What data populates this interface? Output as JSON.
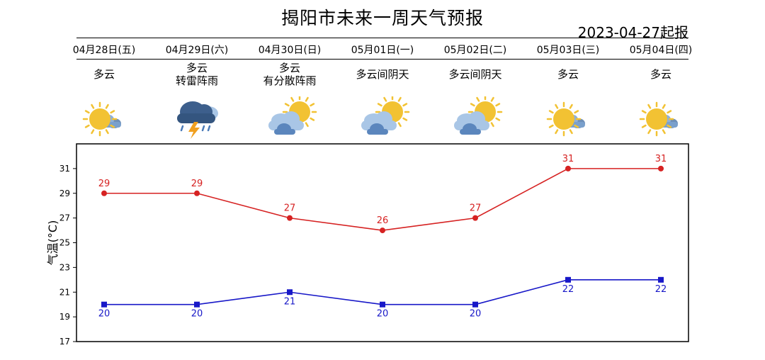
{
  "title": "揭阳市未来一周天气预报",
  "issued": "2023-04-27起报",
  "days": [
    {
      "date": "04月28日(五)",
      "cond": [
        "多云"
      ],
      "icon": "sun-behind-cloud-icon",
      "high": 29,
      "low": 20
    },
    {
      "date": "04月29日(六)",
      "cond": [
        "多云",
        "转雷阵雨"
      ],
      "icon": "thunderstorm-icon",
      "high": 29,
      "low": 20
    },
    {
      "date": "04月30日(日)",
      "cond": [
        "多云",
        "有分散阵雨"
      ],
      "icon": "partly-cloudy-icon",
      "high": 27,
      "low": 21
    },
    {
      "date": "05月01日(一)",
      "cond": [
        "多云间阴天"
      ],
      "icon": "partly-cloudy-icon",
      "high": 26,
      "low": 20
    },
    {
      "date": "05月02日(二)",
      "cond": [
        "多云间阴天"
      ],
      "icon": "partly-cloudy-icon",
      "high": 27,
      "low": 20
    },
    {
      "date": "05月03日(三)",
      "cond": [
        "多云"
      ],
      "icon": "sun-behind-cloud-icon",
      "high": 31,
      "low": 22
    },
    {
      "date": "05月04日(四)",
      "cond": [
        "多云"
      ],
      "icon": "sun-behind-cloud-icon",
      "high": 31,
      "low": 22
    }
  ],
  "chart_data": {
    "type": "line",
    "categories": [
      "04月28日(五)",
      "04月29日(六)",
      "04月30日(日)",
      "05月01日(一)",
      "05月02日(二)",
      "05月03日(三)",
      "05月04日(四)"
    ],
    "series": [
      {
        "values": [
          29,
          29,
          27,
          26,
          27,
          31,
          31
        ],
        "color": "#d62222",
        "marker": "circle",
        "label_position": "above"
      },
      {
        "values": [
          20,
          20,
          21,
          20,
          20,
          22,
          22
        ],
        "color": "#1818c8",
        "marker": "square",
        "label_position": "below"
      }
    ],
    "ylabel": "气温(°C)",
    "ylim": [
      17,
      33
    ],
    "yticks": [
      17,
      19,
      21,
      23,
      25,
      27,
      29,
      31
    ],
    "grid": false
  }
}
